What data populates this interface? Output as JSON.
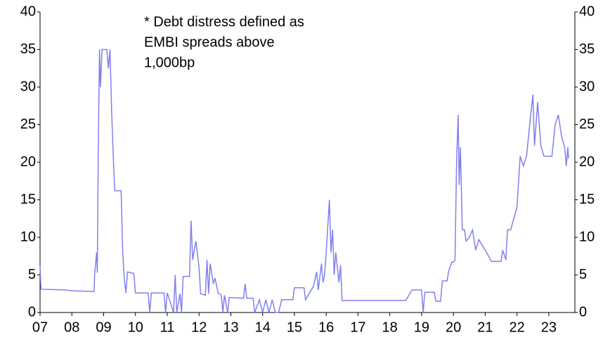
{
  "chart_data": {
    "type": "line",
    "annotation": [
      "* Debt distress defined as",
      "EMBI spreads above",
      "1,000bp"
    ],
    "series": [
      {
        "color": "#8080ee",
        "x": [
          2007.0,
          2007.03,
          2007.8,
          2008.0,
          2008.7,
          2008.72,
          2008.78,
          2008.8,
          2008.83,
          2008.87,
          2008.9,
          2008.95,
          2009.1,
          2009.15,
          2009.2,
          2009.25,
          2009.3,
          2009.35,
          2009.55,
          2009.6,
          2009.65,
          2009.7,
          2009.75,
          2009.95,
          2010.0,
          2010.4,
          2010.45,
          2010.5,
          2010.9,
          2010.95,
          2011.0,
          2011.2,
          2011.25,
          2011.3,
          2011.4,
          2011.45,
          2011.5,
          2011.7,
          2011.75,
          2011.8,
          2011.9,
          2012.0,
          2012.05,
          2012.2,
          2012.25,
          2012.3,
          2012.35,
          2012.45,
          2012.5,
          2012.6,
          2012.7,
          2012.75,
          2012.8,
          2012.9,
          2012.95,
          2013.4,
          2013.45,
          2013.5,
          2013.7,
          2013.75,
          2013.9,
          2014.0,
          2014.1,
          2014.2,
          2014.3,
          2014.4,
          2014.5,
          2014.6,
          2014.95,
          2015.0,
          2015.3,
          2015.35,
          2015.6,
          2015.7,
          2015.75,
          2015.85,
          2015.9,
          2015.95,
          2016.0,
          2016.05,
          2016.1,
          2016.15,
          2016.2,
          2016.25,
          2016.3,
          2016.4,
          2016.45,
          2016.5,
          2017.0,
          2018.5,
          2018.7,
          2019.0,
          2019.05,
          2019.1,
          2019.4,
          2019.45,
          2019.6,
          2019.65,
          2019.8,
          2019.85,
          2019.95,
          2020.0,
          2020.05,
          2020.1,
          2020.15,
          2020.18,
          2020.22,
          2020.28,
          2020.35,
          2020.4,
          2020.5,
          2020.6,
          2020.7,
          2020.8,
          2021.0,
          2021.2,
          2021.5,
          2021.55,
          2021.65,
          2021.7,
          2021.8,
          2021.9,
          2022.0,
          2022.1,
          2022.2,
          2022.3,
          2022.4,
          2022.5,
          2022.55,
          2022.65,
          2022.75,
          2022.85,
          2023.1,
          2023.2,
          2023.3,
          2023.4,
          2023.5,
          2023.55,
          2023.6,
          2023.62
        ],
        "values": [
          6.2,
          3.1,
          3.0,
          2.9,
          2.8,
          5.3,
          8,
          5.3,
          21,
          35,
          30,
          35,
          35,
          32.5,
          35,
          27,
          21,
          16.2,
          16.2,
          8,
          4.5,
          2.6,
          5.4,
          5.2,
          2.6,
          2.6,
          0,
          2.6,
          2.6,
          0,
          2.6,
          0,
          5,
          0,
          2.5,
          0,
          4.8,
          4.8,
          12.2,
          7,
          9.5,
          6,
          2.5,
          2.3,
          7,
          2.5,
          6.5,
          3.8,
          4.6,
          2.6,
          2.3,
          0,
          2.3,
          0,
          2.0,
          1.9,
          3.8,
          1.9,
          1.9,
          0,
          1.7,
          0,
          1.7,
          0,
          1.7,
          0,
          0,
          1.7,
          1.7,
          3.3,
          3.3,
          1.7,
          3.5,
          5.4,
          3,
          6.5,
          4,
          5,
          8,
          11.5,
          15,
          8,
          11,
          5,
          8,
          4,
          6.3,
          1.6,
          1.6,
          1.6,
          3.0,
          3.0,
          0,
          2.7,
          2.7,
          1.5,
          1.5,
          4.2,
          4.2,
          5.5,
          6.7,
          6.7,
          7,
          20,
          26.3,
          17,
          22,
          11,
          11,
          9.5,
          10,
          11,
          8.3,
          9.7,
          8.3,
          6.8,
          6.8,
          8.3,
          7,
          11,
          11,
          12.5,
          14,
          20.8,
          19.5,
          20.8,
          25,
          29,
          22.2,
          28,
          22.2,
          20.8,
          20.8,
          25,
          26.3,
          23.5,
          22,
          19.5,
          22,
          20.5
        ]
      }
    ],
    "xlim": [
      2007,
      2023.82
    ],
    "xticks": [
      {
        "value": 2007,
        "label": "07"
      },
      {
        "value": 2008,
        "label": "08"
      },
      {
        "value": 2009,
        "label": "09"
      },
      {
        "value": 2010,
        "label": "10"
      },
      {
        "value": 2011,
        "label": "11"
      },
      {
        "value": 2012,
        "label": "12"
      },
      {
        "value": 2013,
        "label": "13"
      },
      {
        "value": 2014,
        "label": "14"
      },
      {
        "value": 2015,
        "label": "15"
      },
      {
        "value": 2016,
        "label": "16"
      },
      {
        "value": 2017,
        "label": "17"
      },
      {
        "value": 2018,
        "label": "18"
      },
      {
        "value": 2019,
        "label": "19"
      },
      {
        "value": 2020,
        "label": "20"
      },
      {
        "value": 2021,
        "label": "21"
      },
      {
        "value": 2022,
        "label": "22"
      },
      {
        "value": 2023,
        "label": "23"
      }
    ],
    "ylim": [
      0,
      40
    ],
    "yticks": [
      0,
      5,
      10,
      15,
      20,
      25,
      30,
      35,
      40
    ],
    "y2lim": [
      0,
      40
    ],
    "y2ticks": [
      0,
      5,
      10,
      15,
      20,
      25,
      30,
      35,
      40
    ]
  }
}
